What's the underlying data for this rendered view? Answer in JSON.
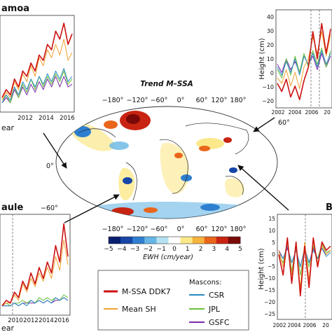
{
  "map": {
    "title": "Trend M–SSA",
    "lon_ticks": [
      "−180°",
      "−120°",
      "−60°",
      "0°",
      "60°",
      "120°",
      "180°"
    ],
    "lat_ticks": [
      "60°",
      "0°",
      "−60°"
    ],
    "colorbar_ticks": [
      "−5",
      "−4",
      "−3",
      "−2",
      "−1",
      "0",
      "1",
      "2",
      "3",
      "4",
      "5"
    ],
    "colorbar_label": "EWH (cm/year)",
    "colors": [
      "#0a1e6e",
      "#1746a8",
      "#2e7fd0",
      "#66b6e4",
      "#b5e1f2",
      "#ffffff",
      "#fbe88a",
      "#f6b33d",
      "#e9661b",
      "#c82411",
      "#7a0a08"
    ]
  },
  "legend": {
    "entries": [
      {
        "label": "M-SSA DDK7",
        "color": "#cc1111"
      },
      {
        "label": "Mean SH",
        "color": "#f0a030"
      }
    ],
    "mascons_title": "Mascons:",
    "mascons": [
      {
        "label": "CSR",
        "color": "#2a8ac0"
      },
      {
        "label": "JPL",
        "color": "#6abf3a"
      },
      {
        "label": "GSFC",
        "color": "#7a2aa8"
      }
    ]
  },
  "panels": {
    "top_left": {
      "title": "amoa",
      "xticks": [
        "2012",
        "2014",
        "2016"
      ],
      "xlabel": "ear"
    },
    "top_right": {
      "ylabel": "Height (cm)",
      "xticks": [
        "2002",
        "2004",
        "2006",
        "20"
      ],
      "yticks": [
        "40",
        "30",
        "20",
        "10",
        "0",
        "−10",
        "−20"
      ]
    },
    "bottom_left": {
      "title": "aule",
      "xticks": [
        "2010",
        "2012",
        "2014",
        "2016"
      ],
      "xlabel": "ear"
    },
    "bottom_right": {
      "title": "B",
      "ylabel": "Height (cm)",
      "xticks": [
        "2002",
        "2004",
        "2006",
        "20"
      ],
      "yticks": [
        "15",
        "10",
        "5",
        "0",
        "−5",
        "−10",
        "−15",
        "−20",
        "−25"
      ]
    }
  },
  "chart_data": [
    {
      "type": "line",
      "panel": "top_left",
      "x": [
        2008,
        2008.5,
        2009,
        2009.5,
        2010,
        2010.5,
        2011,
        2011.5,
        2012,
        2012.5,
        2013,
        2013.5,
        2014,
        2014.5,
        2015,
        2015.5,
        2016,
        2016.5
      ],
      "series": [
        {
          "name": "M-SSA DDK7",
          "values": [
            2,
            5,
            3,
            9,
            6,
            12,
            10,
            15,
            12,
            18,
            16,
            22,
            20,
            27,
            24,
            30,
            22,
            26
          ]
        },
        {
          "name": "Mean SH",
          "values": [
            1,
            4,
            2,
            8,
            5,
            11,
            8,
            14,
            10,
            17,
            14,
            20,
            17,
            22,
            18,
            24,
            16,
            19
          ]
        },
        {
          "name": "CSR",
          "values": [
            0,
            3,
            1,
            6,
            3,
            8,
            5,
            9,
            6,
            10,
            7,
            11,
            8,
            12,
            9,
            13,
            8,
            10
          ]
        },
        {
          "name": "JPL",
          "values": [
            1,
            3,
            0,
            6,
            2,
            7,
            4,
            9,
            5,
            10,
            6,
            10,
            7,
            11,
            8,
            12,
            7,
            9
          ]
        },
        {
          "name": "GSFC",
          "values": [
            0,
            2,
            0,
            5,
            2,
            6,
            3,
            7,
            4,
            8,
            5,
            9,
            6,
            10,
            6,
            10,
            6,
            7
          ]
        }
      ]
    },
    {
      "type": "line",
      "panel": "top_right",
      "x": [
        2002,
        2002.5,
        2003,
        2003.5,
        2004,
        2004.5,
        2005,
        2005.5,
        2006,
        2006.5,
        2007,
        2007.5,
        2008
      ],
      "ylim": [
        -25,
        45
      ],
      "series": [
        {
          "name": "M-SSA DDK7",
          "values": [
            -8,
            -14,
            -5,
            -18,
            -10,
            -20,
            -6,
            4,
            30,
            10,
            36,
            14,
            32
          ]
        },
        {
          "name": "Mean SH",
          "values": [
            -4,
            -8,
            2,
            -10,
            0,
            -12,
            4,
            10,
            26,
            14,
            30,
            12,
            28
          ]
        },
        {
          "name": "CSR",
          "values": [
            4,
            -2,
            8,
            0,
            10,
            -2,
            12,
            6,
            14,
            4,
            16,
            6,
            14
          ]
        },
        {
          "name": "JPL",
          "values": [
            2,
            -4,
            10,
            -2,
            12,
            0,
            14,
            4,
            16,
            6,
            18,
            4,
            16
          ]
        },
        {
          "name": "GSFC",
          "values": [
            6,
            0,
            10,
            2,
            8,
            0,
            12,
            6,
            12,
            2,
            14,
            4,
            12
          ]
        }
      ]
    },
    {
      "type": "line",
      "panel": "bottom_left",
      "x": [
        2008.5,
        2009,
        2009.5,
        2010,
        2010.5,
        2011,
        2011.5,
        2012,
        2012.5,
        2013,
        2013.5,
        2014,
        2014.5,
        2015,
        2015.5,
        2016,
        2016.5
      ],
      "series": [
        {
          "name": "M-SSA DDK7",
          "values": [
            0,
            2,
            1,
            5,
            3,
            9,
            6,
            12,
            8,
            14,
            10,
            16,
            12,
            22,
            16,
            30,
            18
          ]
        },
        {
          "name": "Mean SH",
          "values": [
            0,
            1,
            1,
            4,
            2,
            8,
            5,
            10,
            7,
            12,
            9,
            14,
            10,
            18,
            13,
            24,
            15
          ]
        },
        {
          "name": "CSR",
          "values": [
            0,
            0,
            0,
            1,
            0,
            1,
            0,
            2,
            1,
            2,
            1,
            2,
            1,
            3,
            2,
            3,
            2
          ]
        },
        {
          "name": "JPL",
          "values": [
            0,
            1,
            0,
            1,
            1,
            2,
            1,
            2,
            1,
            3,
            2,
            3,
            2,
            3,
            2,
            4,
            3
          ]
        },
        {
          "name": "GSFC",
          "values": [
            0,
            0,
            0,
            1,
            0,
            1,
            1,
            1,
            1,
            2,
            1,
            2,
            1,
            2,
            2,
            3,
            2
          ]
        }
      ]
    },
    {
      "type": "line",
      "panel": "bottom_right",
      "x": [
        2002,
        2002.5,
        2003,
        2003.5,
        2004,
        2004.5,
        2005,
        2005.5,
        2006,
        2006.5,
        2007,
        2007.5,
        2008
      ],
      "ylim": [
        -30,
        18
      ],
      "series": [
        {
          "name": "M-SSA DDK7",
          "values": [
            0,
            -10,
            8,
            -14,
            6,
            -20,
            4,
            -16,
            8,
            -6,
            6,
            2,
            4
          ]
        },
        {
          "name": "Mean SH",
          "values": [
            2,
            -6,
            6,
            -10,
            4,
            -16,
            6,
            -12,
            6,
            -4,
            4,
            0,
            2
          ]
        },
        {
          "name": "CSR",
          "values": [
            1,
            -2,
            4,
            -4,
            2,
            -6,
            3,
            -4,
            2,
            -2,
            3,
            -1,
            1
          ]
        },
        {
          "name": "JPL",
          "values": [
            0,
            -4,
            6,
            -8,
            4,
            -10,
            2,
            -6,
            4,
            -2,
            5,
            1,
            2
          ]
        },
        {
          "name": "GSFC",
          "values": [
            2,
            -2,
            3,
            -4,
            2,
            -6,
            3,
            -4,
            3,
            -2,
            3,
            0,
            2
          ]
        }
      ]
    }
  ]
}
